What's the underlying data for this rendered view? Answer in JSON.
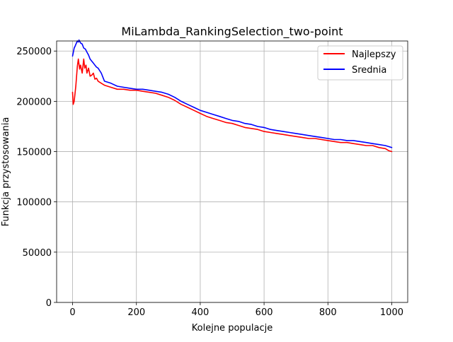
{
  "chart_data": {
    "type": "line",
    "title": "MiLambda_RankingSelection_two-point",
    "xlabel": "Kolejne populacje",
    "ylabel": "Funkcja przystosowania",
    "xlim": [
      -50,
      1050
    ],
    "ylim": [
      0,
      260000
    ],
    "x_ticks": [
      0,
      200,
      400,
      600,
      800,
      1000
    ],
    "y_ticks": [
      0,
      50000,
      100000,
      150000,
      200000,
      250000
    ],
    "x_tick_labels": [
      "0",
      "200",
      "400",
      "600",
      "800",
      "1000"
    ],
    "y_tick_labels": [
      "0",
      "50000",
      "100000",
      "150000",
      "200000",
      "250000"
    ],
    "grid": true,
    "legend_position": "top-right",
    "series": [
      {
        "name": "Najlepszy",
        "color": "#ff0000",
        "x": [
          0,
          2,
          5,
          10,
          15,
          18,
          22,
          25,
          30,
          35,
          38,
          42,
          45,
          50,
          55,
          60,
          65,
          70,
          75,
          80,
          90,
          100,
          120,
          140,
          160,
          180,
          200,
          220,
          240,
          260,
          280,
          300,
          320,
          340,
          360,
          380,
          400,
          420,
          440,
          460,
          480,
          500,
          520,
          540,
          560,
          580,
          600,
          620,
          640,
          660,
          680,
          700,
          720,
          740,
          760,
          780,
          800,
          820,
          840,
          860,
          880,
          900,
          920,
          940,
          960,
          980,
          990,
          1000
        ],
        "y": [
          209000,
          197000,
          200000,
          215000,
          235000,
          242000,
          232000,
          236000,
          228000,
          242000,
          233000,
          236000,
          228000,
          233000,
          225000,
          226000,
          228000,
          222000,
          223000,
          220000,
          218000,
          216000,
          214000,
          212000,
          212000,
          211000,
          211000,
          210000,
          209000,
          208000,
          206000,
          204000,
          201000,
          197000,
          194000,
          191000,
          188000,
          185000,
          183000,
          181000,
          179000,
          178000,
          176000,
          174000,
          173000,
          172000,
          170000,
          169000,
          168000,
          167000,
          166000,
          165000,
          164000,
          163000,
          163000,
          162000,
          161000,
          160000,
          159000,
          159000,
          158000,
          157000,
          156000,
          156000,
          154000,
          153000,
          151000,
          150000
        ]
      },
      {
        "name": "Srednia",
        "color": "#0000ff",
        "x": [
          0,
          2,
          5,
          8,
          12,
          15,
          18,
          20,
          25,
          30,
          35,
          40,
          45,
          50,
          55,
          60,
          65,
          70,
          75,
          80,
          90,
          100,
          120,
          140,
          160,
          180,
          200,
          220,
          240,
          260,
          280,
          300,
          320,
          340,
          360,
          380,
          400,
          420,
          440,
          460,
          480,
          500,
          520,
          540,
          560,
          580,
          600,
          620,
          640,
          660,
          680,
          700,
          720,
          740,
          760,
          780,
          800,
          820,
          840,
          860,
          880,
          900,
          920,
          940,
          960,
          980,
          990,
          1000
        ],
        "y": [
          245000,
          248000,
          253000,
          255000,
          258000,
          260000,
          259000,
          261000,
          258000,
          257000,
          253000,
          252000,
          249000,
          246000,
          242000,
          240000,
          238000,
          236000,
          234000,
          233000,
          228000,
          220000,
          218000,
          215000,
          214000,
          213000,
          212000,
          212000,
          211000,
          210000,
          209000,
          207000,
          204000,
          200000,
          197000,
          194000,
          191000,
          189000,
          187000,
          185000,
          183000,
          181000,
          180000,
          178000,
          177000,
          175000,
          174000,
          172000,
          171000,
          170000,
          169000,
          168000,
          167000,
          166000,
          165000,
          164000,
          163000,
          162000,
          162000,
          161000,
          161000,
          160000,
          159000,
          158000,
          157000,
          156000,
          155000,
          154000
        ]
      }
    ]
  }
}
